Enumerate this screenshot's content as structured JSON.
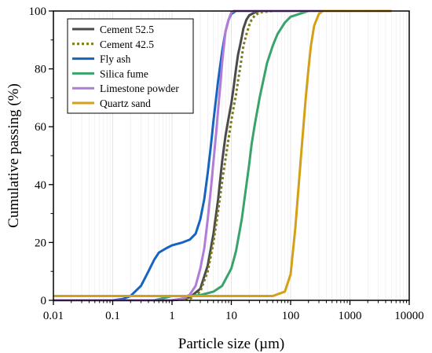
{
  "chart_data": {
    "type": "line",
    "xlabel": "Particle size (µm)",
    "ylabel": "Cumulative passing (%)",
    "xscale": "log",
    "xlim": [
      0.01,
      10000
    ],
    "ylim": [
      0,
      100
    ],
    "xticks": [
      0.01,
      0.1,
      1,
      10,
      100,
      1000,
      10000
    ],
    "xtick_labels": [
      "0.01",
      "0.1",
      "1",
      "10",
      "100",
      "1000",
      "10000"
    ],
    "yticks": [
      0,
      20,
      40,
      60,
      80,
      100
    ],
    "ytick_labels": [
      "0",
      "20",
      "40",
      "60",
      "80",
      "100"
    ],
    "grid": "vertical minor lines",
    "legend_position": "top-left",
    "series": [
      {
        "name": "Cement 52.5",
        "color": "#4a4a4a",
        "dash": "solid",
        "x": [
          0.01,
          1,
          2,
          3,
          4,
          5,
          6,
          7,
          8,
          9,
          10,
          11,
          12,
          13,
          14,
          15,
          16,
          18,
          20,
          25,
          30,
          50,
          100,
          5000
        ],
        "y": [
          0,
          0,
          1,
          4,
          12,
          23,
          35,
          48,
          57,
          63,
          68,
          74,
          80,
          85,
          88,
          91,
          94,
          97,
          98.5,
          99.5,
          100,
          100,
          100,
          100
        ]
      },
      {
        "name": "Cement 42.5",
        "color": "#7a7a1a",
        "dash": "dotted",
        "x": [
          0.01,
          1,
          2,
          3,
          4,
          5,
          6,
          7,
          8,
          9,
          10,
          11,
          12,
          13,
          14,
          15,
          16,
          18,
          20,
          22,
          25,
          30,
          50,
          100,
          5000
        ],
        "y": [
          0,
          0,
          0.5,
          3,
          10,
          20,
          31,
          41,
          49,
          56,
          62,
          67,
          71,
          76,
          80,
          84,
          88,
          92,
          95,
          97,
          98.5,
          99.5,
          100,
          100,
          100
        ]
      },
      {
        "name": "Fly ash",
        "color": "#1565c0",
        "dash": "solid",
        "x": [
          0.01,
          0.1,
          0.15,
          0.2,
          0.3,
          0.4,
          0.5,
          0.6,
          0.8,
          1,
          1.5,
          2,
          2.5,
          3,
          3.5,
          4,
          4.5,
          5,
          6,
          7,
          8,
          9,
          10,
          12,
          5000
        ],
        "y": [
          0,
          0,
          0.5,
          1.5,
          5,
          10,
          14,
          16.5,
          18,
          19,
          20,
          21,
          23,
          28,
          35,
          44,
          53,
          62,
          76,
          86,
          93,
          97,
          99,
          100,
          100
        ]
      },
      {
        "name": "Silica fume",
        "color": "#3aa36a",
        "dash": "solid",
        "x": [
          0.01,
          0.5,
          0.8,
          1,
          2,
          3,
          5,
          7,
          10,
          12,
          15,
          18,
          20,
          22,
          25,
          30,
          40,
          50,
          60,
          80,
          100,
          200,
          5000
        ],
        "y": [
          0,
          0,
          1,
          1.5,
          1.5,
          1.8,
          3,
          5,
          11,
          17,
          28,
          40,
          47,
          54,
          61,
          70,
          82,
          88,
          92,
          96,
          98,
          100,
          100
        ]
      },
      {
        "name": "Limestone powder",
        "color": "#b07cd8",
        "dash": "solid",
        "x": [
          0.01,
          1,
          1.5,
          2,
          2.5,
          3,
          3.5,
          4,
          4.5,
          5,
          5.5,
          6,
          6.5,
          7,
          7.5,
          8,
          9,
          10,
          11,
          5000
        ],
        "y": [
          0,
          0,
          0.5,
          2,
          5,
          11,
          18,
          28,
          38,
          48,
          57,
          66,
          74,
          82,
          88,
          93,
          97,
          99.5,
          100,
          100
        ]
      },
      {
        "name": "Quartz sand",
        "color": "#d4a017",
        "dash": "solid",
        "x": [
          0.01,
          10,
          50,
          80,
          100,
          120,
          150,
          180,
          200,
          220,
          250,
          300,
          350,
          400,
          5000
        ],
        "y": [
          1.5,
          1.5,
          1.5,
          3,
          9,
          25,
          50,
          70,
          80,
          88,
          95,
          99,
          100,
          100,
          100
        ]
      }
    ]
  }
}
